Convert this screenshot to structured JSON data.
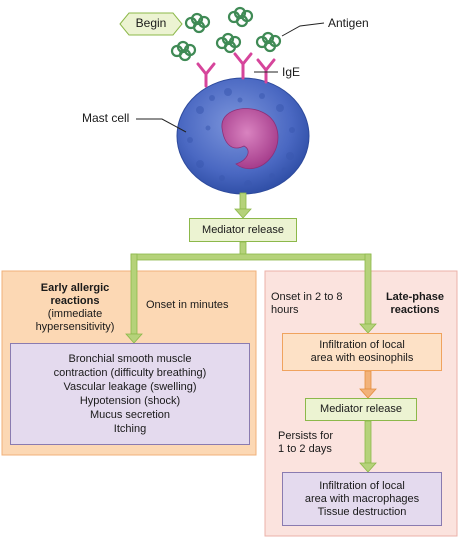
{
  "labels": {
    "begin": "Begin",
    "antigen": "Antigen",
    "ige": "IgE",
    "mast_cell": "Mast cell"
  },
  "top_mediator": "Mediator release",
  "early": {
    "title": "Early allergic\nreactions",
    "subtitle": "(immediate\nhypersensitivity)",
    "onset": "Onset in minutes",
    "effects": [
      "Bronchial smooth muscle",
      "contraction (difficulty breathing)",
      "Vascular leakage (swelling)",
      "Hypotension (shock)",
      "Mucus secretion",
      "Itching"
    ]
  },
  "late": {
    "title": "Late-phase\nreactions",
    "onset": "Onset in 2 to 8\nhours",
    "step1": "Infiltration of local\narea with eosinophils",
    "step2": "Mediator release",
    "persists": "Persists for\n1 to 2 days",
    "step3": "Infiltration of local\narea with macrophages\nTissue destruction"
  },
  "colors": {
    "arrow_green": "#b5d27a",
    "arrow_orange": "#f2b27a",
    "cell_cytoplasm": "#4a68c2",
    "cell_nucleus": "#b7489a",
    "antigen": "#3f8a55",
    "antibody": "#d6459b"
  }
}
